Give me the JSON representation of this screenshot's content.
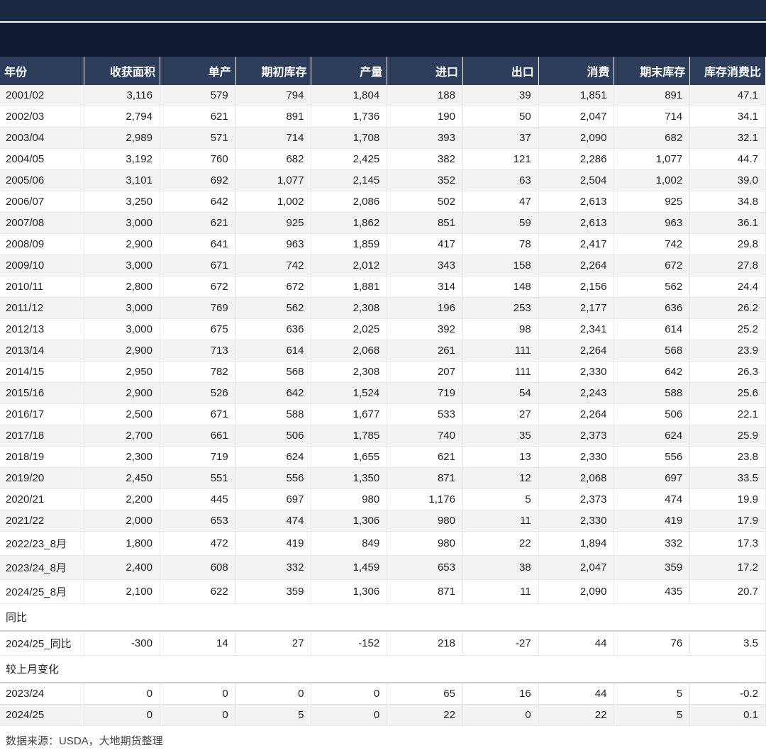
{
  "colors": {
    "top_bar_bg": "#1a2942",
    "sub_bar_bg": "#0f1a2e",
    "header_bg": "#2c3e5c",
    "header_text": "#ffffff",
    "row_odd_bg": "#f3f3f3",
    "row_even_bg": "#ffffff",
    "cell_text": "#222222",
    "border": "#e8e8e8"
  },
  "typography": {
    "font_family": "Microsoft YaHei",
    "header_fontsize": 16,
    "cell_fontsize": 15
  },
  "table": {
    "columns": [
      "年份",
      "收获面积",
      "单产",
      "期初库存",
      "产量",
      "进口",
      "出口",
      "消费",
      "期末库存",
      "库存消费比"
    ],
    "align": [
      "left",
      "right",
      "right",
      "right",
      "right",
      "right",
      "right",
      "right",
      "right",
      "right"
    ],
    "rows": [
      [
        "2001/02",
        "3,116",
        "579",
        "794",
        "1,804",
        "188",
        "39",
        "1,851",
        "891",
        "47.1"
      ],
      [
        "2002/03",
        "2,794",
        "621",
        "891",
        "1,736",
        "190",
        "50",
        "2,047",
        "714",
        "34.1"
      ],
      [
        "2003/04",
        "2,989",
        "571",
        "714",
        "1,708",
        "393",
        "37",
        "2,090",
        "682",
        "32.1"
      ],
      [
        "2004/05",
        "3,192",
        "760",
        "682",
        "2,425",
        "382",
        "121",
        "2,286",
        "1,077",
        "44.7"
      ],
      [
        "2005/06",
        "3,101",
        "692",
        "1,077",
        "2,145",
        "352",
        "63",
        "2,504",
        "1,002",
        "39.0"
      ],
      [
        "2006/07",
        "3,250",
        "642",
        "1,002",
        "2,086",
        "502",
        "47",
        "2,613",
        "925",
        "34.8"
      ],
      [
        "2007/08",
        "3,000",
        "621",
        "925",
        "1,862",
        "851",
        "59",
        "2,613",
        "963",
        "36.1"
      ],
      [
        "2008/09",
        "2,900",
        "641",
        "963",
        "1,859",
        "417",
        "78",
        "2,417",
        "742",
        "29.8"
      ],
      [
        "2009/10",
        "3,000",
        "671",
        "742",
        "2,012",
        "343",
        "158",
        "2,264",
        "672",
        "27.8"
      ],
      [
        "2010/11",
        "2,800",
        "672",
        "672",
        "1,881",
        "314",
        "148",
        "2,156",
        "562",
        "24.4"
      ],
      [
        "2011/12",
        "3,000",
        "769",
        "562",
        "2,308",
        "196",
        "253",
        "2,177",
        "636",
        "26.2"
      ],
      [
        "2012/13",
        "3,000",
        "675",
        "636",
        "2,025",
        "392",
        "98",
        "2,341",
        "614",
        "25.2"
      ],
      [
        "2013/14",
        "2,900",
        "713",
        "614",
        "2,068",
        "261",
        "111",
        "2,264",
        "568",
        "23.9"
      ],
      [
        "2014/15",
        "2,950",
        "782",
        "568",
        "2,308",
        "207",
        "111",
        "2,330",
        "642",
        "26.3"
      ],
      [
        "2015/16",
        "2,900",
        "526",
        "642",
        "1,524",
        "719",
        "54",
        "2,243",
        "588",
        "25.6"
      ],
      [
        "2016/17",
        "2,500",
        "671",
        "588",
        "1,677",
        "533",
        "27",
        "2,264",
        "506",
        "22.1"
      ],
      [
        "2017/18",
        "2,700",
        "661",
        "506",
        "1,785",
        "740",
        "35",
        "2,373",
        "624",
        "25.9"
      ],
      [
        "2018/19",
        "2,300",
        "719",
        "624",
        "1,655",
        "621",
        "13",
        "2,330",
        "556",
        "23.8"
      ],
      [
        "2019/20",
        "2,450",
        "551",
        "556",
        "1,350",
        "871",
        "12",
        "2,068",
        "697",
        "33.5"
      ],
      [
        "2020/21",
        "2,200",
        "445",
        "697",
        "980",
        "1,176",
        "5",
        "2,373",
        "474",
        "19.9"
      ],
      [
        "2021/22",
        "2,000",
        "653",
        "474",
        "1,306",
        "980",
        "11",
        "2,330",
        "419",
        "17.9"
      ],
      [
        "2022/23_8月",
        "1,800",
        "472",
        "419",
        "849",
        "980",
        "22",
        "1,894",
        "332",
        "17.3"
      ],
      [
        "2023/24_8月",
        "2,400",
        "608",
        "332",
        "1,459",
        "653",
        "38",
        "2,047",
        "359",
        "17.2"
      ],
      [
        "2024/25_8月",
        "2,100",
        "622",
        "359",
        "1,306",
        "871",
        "11",
        "2,090",
        "435",
        "20.7"
      ]
    ],
    "sections": [
      {
        "label": "同比",
        "rows": [
          [
            "2024/25_同比",
            "-300",
            "14",
            "27",
            "-152",
            "218",
            "-27",
            "44",
            "76",
            "3.5"
          ]
        ]
      },
      {
        "label": "较上月变化",
        "rows": [
          [
            "2023/24",
            "0",
            "0",
            "0",
            "0",
            "65",
            "16",
            "44",
            "5",
            "-0.2"
          ],
          [
            "2024/25",
            "0",
            "0",
            "5",
            "0",
            "22",
            "0",
            "22",
            "5",
            "0.1"
          ]
        ]
      }
    ]
  },
  "footer": "数据来源：USDA，大地期货整理"
}
